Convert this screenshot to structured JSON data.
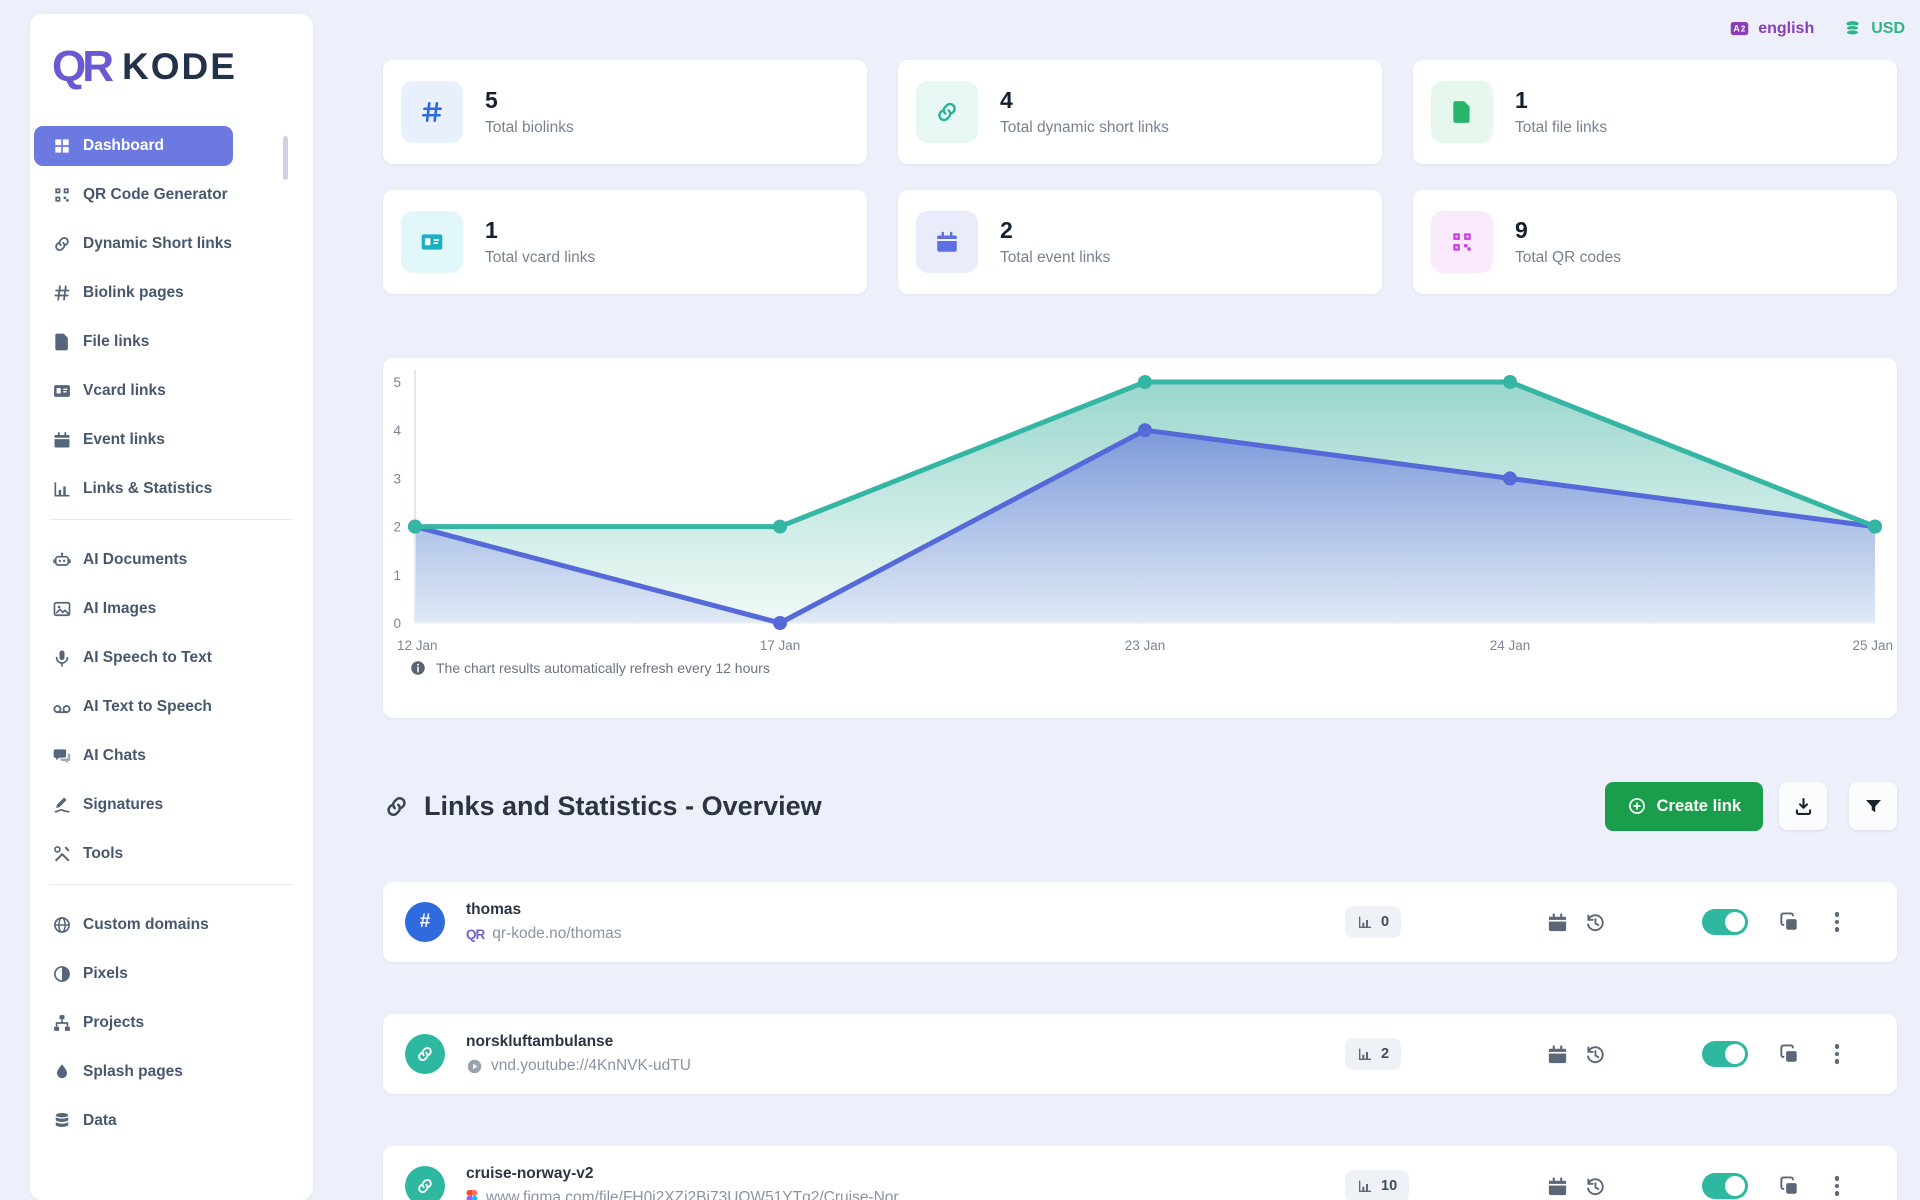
{
  "brand": {
    "mark": "QR",
    "name": "KODE"
  },
  "topbar": {
    "language": "english",
    "currency": "USD"
  },
  "sidebar": {
    "groups": [
      {
        "items": [
          {
            "label": "Dashboard",
            "icon": "dashboard-grid-icon",
            "active": true
          },
          {
            "label": "QR Code Generator",
            "icon": "qr-code-icon"
          },
          {
            "label": "Dynamic Short links",
            "icon": "link-icon"
          },
          {
            "label": "Biolink pages",
            "icon": "hash-icon"
          },
          {
            "label": "File links",
            "icon": "file-icon"
          },
          {
            "label": "Vcard links",
            "icon": "vcard-icon"
          },
          {
            "label": "Event links",
            "icon": "calendar-icon"
          },
          {
            "label": "Links & Statistics",
            "icon": "bar-chart-icon"
          }
        ]
      },
      {
        "items": [
          {
            "label": "AI Documents",
            "icon": "robot-icon"
          },
          {
            "label": "AI Images",
            "icon": "image-icon"
          },
          {
            "label": "AI Speech to Text",
            "icon": "microphone-icon"
          },
          {
            "label": "AI Text to Speech",
            "icon": "voicemail-icon"
          },
          {
            "label": "AI Chats",
            "icon": "chat-icon"
          },
          {
            "label": "Signatures",
            "icon": "signature-icon"
          },
          {
            "label": "Tools",
            "icon": "tools-icon"
          }
        ]
      },
      {
        "items": [
          {
            "label": "Custom domains",
            "icon": "globe-icon"
          },
          {
            "label": "Pixels",
            "icon": "contrast-icon"
          },
          {
            "label": "Projects",
            "icon": "sitemap-icon"
          },
          {
            "label": "Splash pages",
            "icon": "droplet-icon"
          },
          {
            "label": "Data",
            "icon": "database-icon"
          }
        ]
      }
    ]
  },
  "stats": [
    {
      "value": "5",
      "label": "Total biolinks",
      "icon": "hash-icon",
      "color": "#2f6bdf",
      "bg": "#e9f0fd"
    },
    {
      "value": "4",
      "label": "Total dynamic short links",
      "icon": "link-icon",
      "color": "#2bb39a",
      "bg": "#e7f7f4"
    },
    {
      "value": "1",
      "label": "Total file links",
      "icon": "file-icon",
      "color": "#27b56b",
      "bg": "#e6f7ee"
    },
    {
      "value": "1",
      "label": "Total vcard links",
      "icon": "vcard-icon",
      "color": "#17b0c4",
      "bg": "#e1f7fa"
    },
    {
      "value": "2",
      "label": "Total event links",
      "icon": "calendar-icon",
      "color": "#5f6ee2",
      "bg": "#e9ecfb"
    },
    {
      "value": "9",
      "label": "Total QR codes",
      "icon": "qr-code-icon",
      "color": "#c93bdd",
      "bg": "#fbeafd"
    }
  ],
  "chart_note": "The chart results automatically refresh every 12 hours",
  "chart_data": {
    "type": "area",
    "x": [
      "12 Jan",
      "17 Jan",
      "23 Jan",
      "24 Jan",
      "25 Jan"
    ],
    "series": [
      {
        "name": "series-teal",
        "color": "#35b5a3",
        "values": [
          2,
          2,
          5,
          5,
          2
        ]
      },
      {
        "name": "series-blue",
        "color": "#5569d8",
        "values": [
          2,
          0,
          4,
          3,
          2
        ]
      }
    ],
    "ylim": [
      0,
      5
    ],
    "yticks": [
      0,
      1,
      2,
      3,
      4,
      5
    ],
    "grid": false,
    "legend": "none"
  },
  "overview": {
    "title": "Links and Statistics - Overview",
    "create_button": "Create link"
  },
  "links": [
    {
      "name": "thomas",
      "url_prefix": "QR",
      "url": "qr-kode.no/thomas",
      "clicks": "0",
      "avatar_icon": "hash-icon",
      "url_icon": "qr-logo-icon"
    },
    {
      "name": "norskluftambulanse",
      "url": "vnd.youtube://4KnNVK-udTU",
      "clicks": "2",
      "avatar_icon": "link-icon",
      "url_icon": "play-circle-icon"
    },
    {
      "name": "cruise-norway-v2",
      "url": "www.figma.com/file/FH0i2XZi2Bi73UQW51YTq2/Cruise-Nor...",
      "clicks": "10",
      "avatar_icon": "link-icon",
      "url_icon": "figma-icon"
    }
  ],
  "colors": {
    "page_bg": "#edf0fa",
    "sidebar_active": "#6b79e0",
    "create_button": "#1b9e4b",
    "toggle_on": "#2eb8a0",
    "language": "#8a3db8",
    "currency": "#2db487"
  }
}
